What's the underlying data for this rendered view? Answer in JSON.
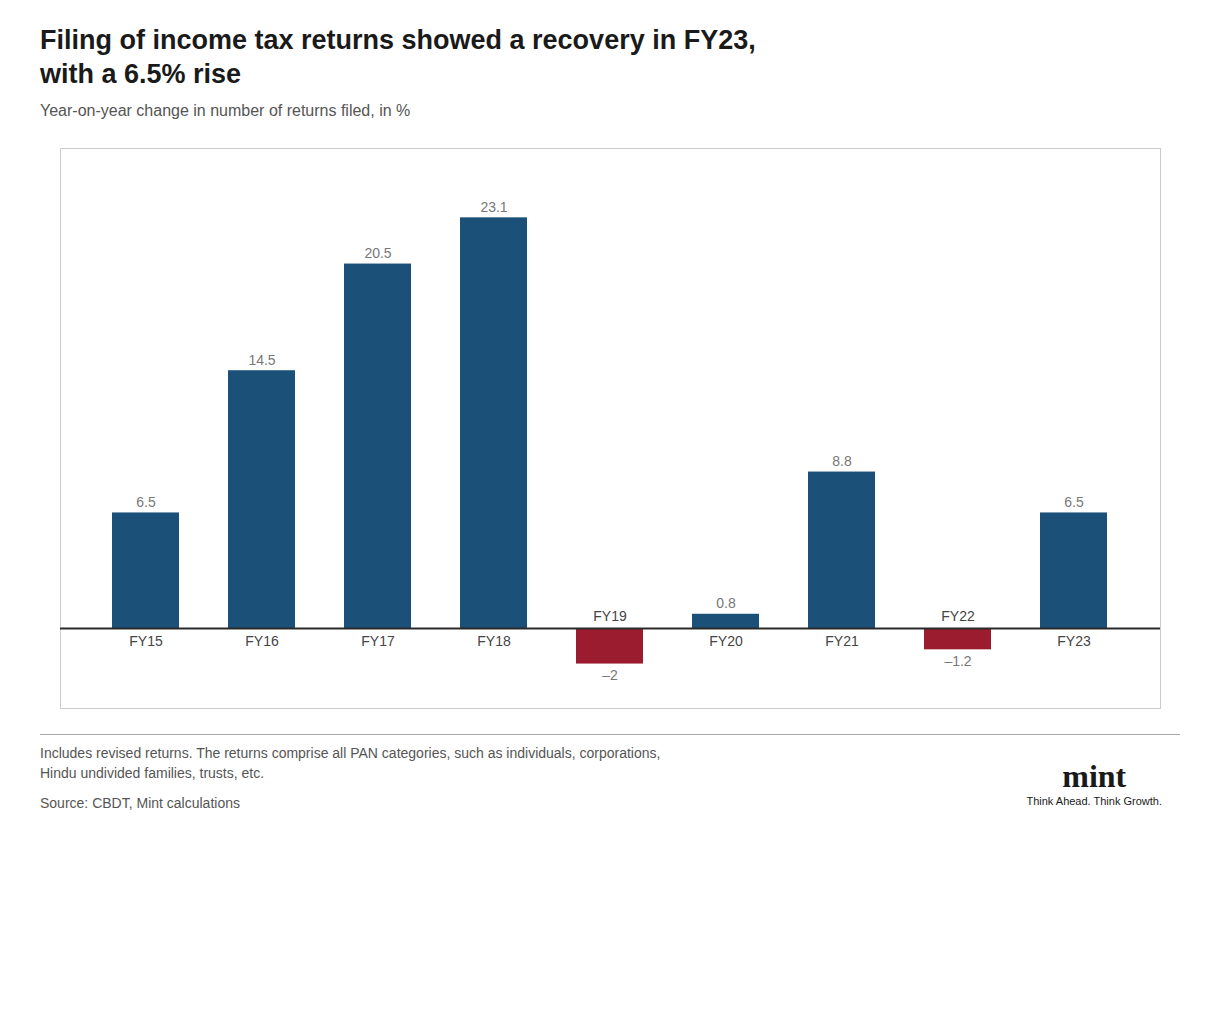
{
  "chart_data": {
    "type": "bar",
    "title": "Filing of income tax returns showed a recovery in FY23,\nwith a 6.5% rise",
    "subtitle": "Year-on-year change in number of returns filed, in %",
    "categories": [
      "FY15",
      "FY16",
      "FY17",
      "FY18",
      "FY19",
      "FY20",
      "FY21",
      "FY22",
      "FY23"
    ],
    "values": [
      6.5,
      14.5,
      20.5,
      23.1,
      -2.0,
      0.8,
      8.8,
      -1.2,
      6.5
    ],
    "value_labels": [
      "6.5",
      "14.5",
      "20.5",
      "23.1",
      "–2",
      "0.8",
      "8.8",
      "–1.2",
      "6.5"
    ],
    "colors": [
      "#1b5078",
      "#1b5078",
      "#1b5078",
      "#1b5078",
      "#9b1c2e",
      "#1b5078",
      "#1b5078",
      "#9b1c2e",
      "#1b5078"
    ],
    "ylim": [
      -4.5,
      27
    ],
    "data_labels": true,
    "tick_labels": "x",
    "grid": false,
    "annotations": [
      "Includes revised returns. The returns comprise all PAN categories, such as individuals, corporations,",
      "Hindu undivided families, trusts, etc.",
      "Source: CBDT, Mint calculations",
      "mint",
      "Think Ahead. Think Growth."
    ]
  }
}
